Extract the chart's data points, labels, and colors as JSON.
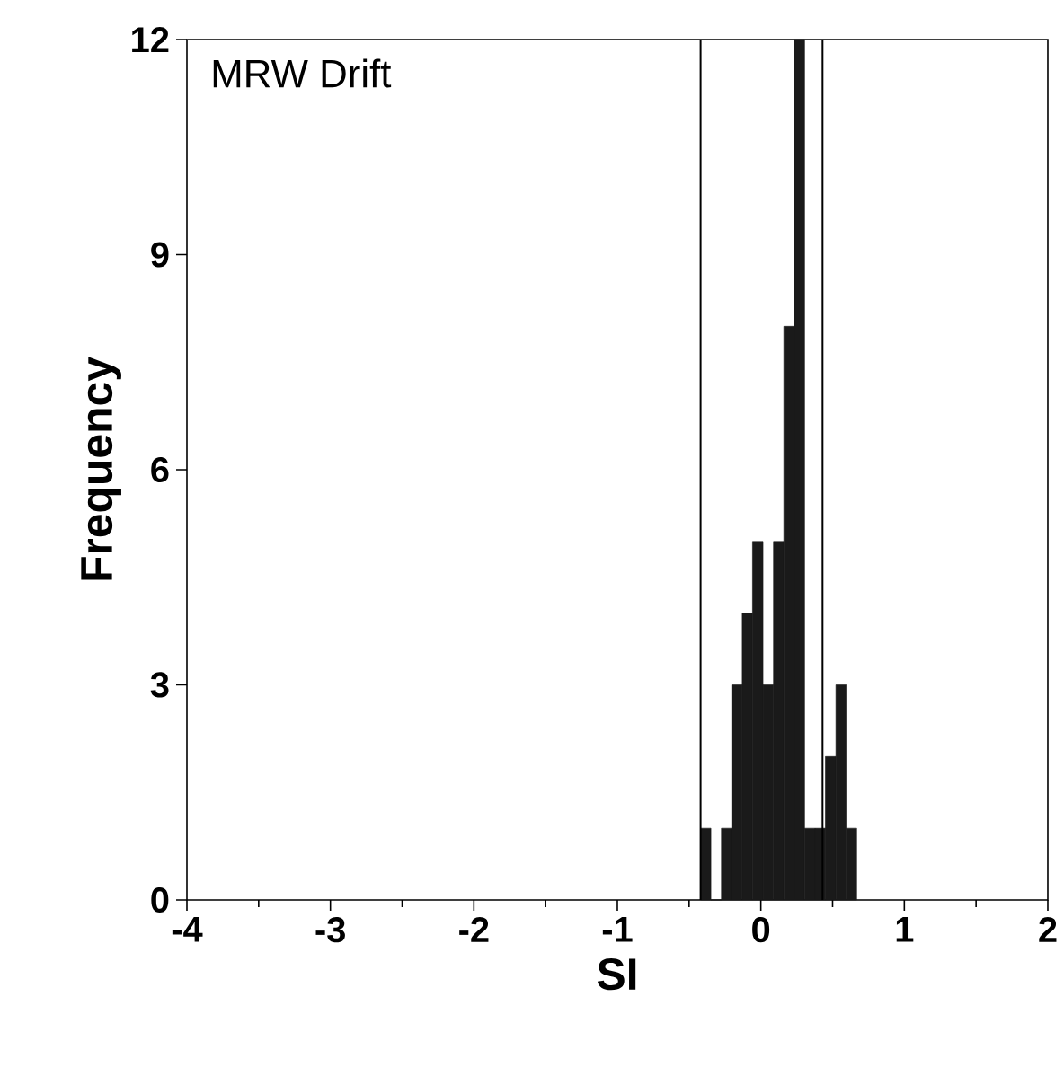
{
  "chart_data": {
    "type": "histogram",
    "title": "MRW Drift",
    "xlabel": "SI",
    "ylabel": "Frequency",
    "bins": [
      -0.42,
      -0.348,
      -0.275,
      -0.203,
      -0.13,
      -0.058,
      0.015,
      0.088,
      0.16,
      0.233,
      0.305,
      0.378,
      0.45,
      0.523,
      0.595,
      0.668
    ],
    "values": [
      1,
      0,
      1,
      3,
      4,
      5,
      3,
      5,
      8,
      12,
      1,
      1,
      2,
      3,
      1
    ],
    "color": "#1a1a1a",
    "xlim": [
      -4,
      2
    ],
    "ylim": [
      0,
      12
    ],
    "xticks": [
      -4,
      -3,
      -2,
      -1,
      0,
      1,
      2
    ],
    "yticks": [
      0,
      3,
      6,
      9,
      12
    ],
    "ref_lines": [
      {
        "axis": "x",
        "value": -0.42,
        "color": "#000000"
      },
      {
        "axis": "x",
        "value": 0.43,
        "color": "#000000"
      }
    ],
    "grid": false
  }
}
